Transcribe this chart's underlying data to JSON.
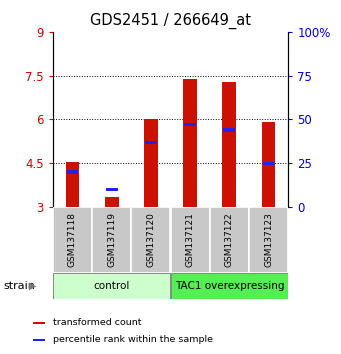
{
  "title": "GDS2451 / 266649_at",
  "samples": [
    "GSM137118",
    "GSM137119",
    "GSM137120",
    "GSM137121",
    "GSM137122",
    "GSM137123"
  ],
  "red_values": [
    4.55,
    3.35,
    6.0,
    7.4,
    7.28,
    5.9
  ],
  "blue_percentiles": [
    20,
    10,
    37,
    47,
    44,
    25
  ],
  "baseline": 3.0,
  "ylim_left": [
    3,
    9
  ],
  "ylim_right": [
    0,
    100
  ],
  "yticks_left": [
    3,
    4.5,
    6,
    7.5,
    9
  ],
  "yticks_right": [
    0,
    25,
    50,
    75,
    100
  ],
  "ytick_labels_left": [
    "3",
    "4.5",
    "6",
    "7.5",
    "9"
  ],
  "ytick_labels_right": [
    "0",
    "25",
    "50",
    "75",
    "100%"
  ],
  "gridlines": [
    4.5,
    6.0,
    7.5
  ],
  "groups": [
    {
      "label": "control",
      "indices": [
        0,
        1,
        2
      ],
      "color": "#ccffcc"
    },
    {
      "label": "TAC1 overexpressing",
      "indices": [
        3,
        4,
        5
      ],
      "color": "#55ee55"
    }
  ],
  "bar_color": "#cc1100",
  "blue_color": "#2222ee",
  "bar_width": 0.35,
  "left_tick_color": "#cc0000",
  "right_tick_color": "#0000cc",
  "strain_label": "strain",
  "legend_items": [
    {
      "label": "transformed count",
      "color": "#cc1100"
    },
    {
      "label": "percentile rank within the sample",
      "color": "#2222ee"
    }
  ]
}
